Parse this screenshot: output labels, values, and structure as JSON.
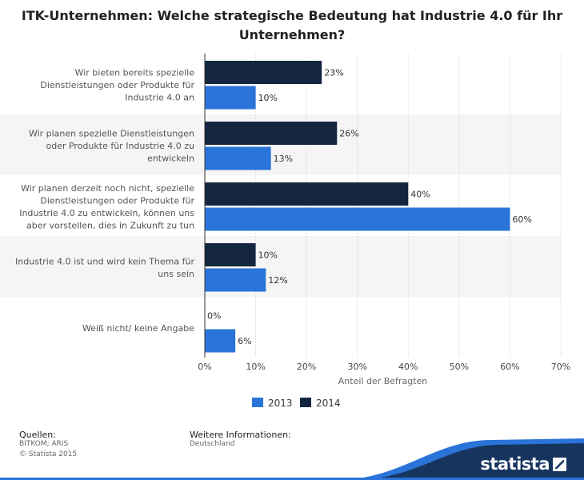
{
  "chart_data": {
    "type": "bar",
    "orientation": "horizontal",
    "title": "ITK-Unternehmen: Welche strategische Bedeutung hat Industrie 4.0 für Ihr Unternehmen?",
    "xlabel": "Anteil der Befragten",
    "ylabel": "",
    "xlim": [
      0,
      70
    ],
    "ticks": [
      "0%",
      "10%",
      "20%",
      "30%",
      "40%",
      "50%",
      "60%",
      "70%"
    ],
    "tick_values": [
      0,
      10,
      20,
      30,
      40,
      50,
      60,
      70
    ],
    "categories": [
      [
        "Wir bieten bereits spezielle",
        "Dienstleistungen oder Produkte für",
        "Industrie 4.0 an"
      ],
      [
        "Wir planen spezielle Dienstleistungen",
        "oder Produkte für Industrie 4.0 zu",
        "entwickeln"
      ],
      [
        "Wir planen derzeit noch nicht, spezielle",
        "Dienstleistungen oder Produkte für",
        "Industrie 4.0 zu entwickeln, können uns",
        "aber vorstellen, dies in Zukunft zu tun"
      ],
      [
        "Industrie 4.0 ist und wird kein Thema für",
        "uns sein"
      ],
      [
        "Weiß nicht/ keine Angabe"
      ]
    ],
    "series": [
      {
        "name": "2014",
        "color": "#14263f",
        "values": [
          23,
          26,
          40,
          10,
          0
        ],
        "labels": [
          "23%",
          "26%",
          "40%",
          "10%",
          "0%"
        ]
      },
      {
        "name": "2013",
        "color": "#2a73d8",
        "values": [
          10,
          13,
          60,
          12,
          6
        ],
        "labels": [
          "10%",
          "13%",
          "60%",
          "12%",
          "6%"
        ]
      }
    ],
    "legend": [
      {
        "name": "2013",
        "color": "#2a73d8"
      },
      {
        "name": "2014",
        "color": "#14263f"
      }
    ],
    "grid": true,
    "legend_position": "bottom"
  },
  "footer": {
    "sources_label": "Quellen:",
    "sources_lines": [
      "BITKOM; ARIS",
      "© Statista 2015"
    ],
    "info_label": "Weitere Informationen:",
    "info_value": "Deutschland",
    "brand": "statista"
  },
  "colors": {
    "band": "#f5f5f5",
    "wave": "#2a73d8",
    "wave_dark": "#16355e"
  }
}
